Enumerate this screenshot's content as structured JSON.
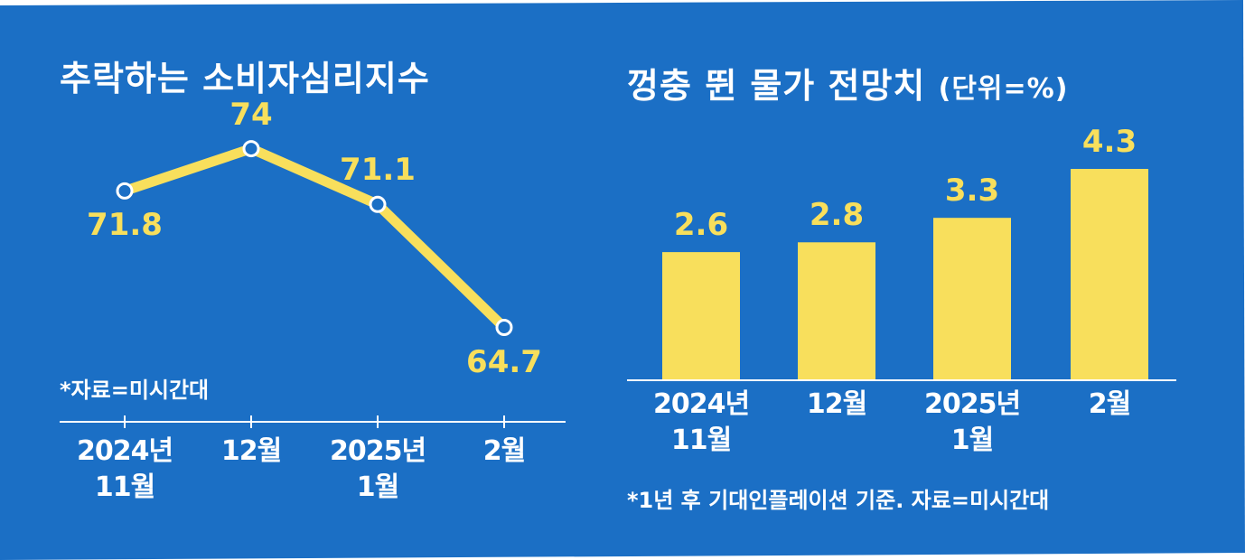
{
  "colors": {
    "background": "#1b6fc5",
    "accent": "#f8df5c",
    "text": "#ffffff"
  },
  "chart_data": [
    {
      "type": "line",
      "title": "추락하는 소비자심리지수",
      "categories": [
        "2024년\n11월",
        "12월",
        "2025년\n1월",
        "2월"
      ],
      "values": [
        71.8,
        74,
        71.1,
        64.7
      ],
      "value_labels": [
        "71.8",
        "74",
        "71.1",
        "64.7"
      ],
      "note": "*자료=미시간대",
      "ylim": [
        62,
        76
      ],
      "grid": false,
      "legend": "none"
    },
    {
      "type": "bar",
      "title": "껑충 뛴 물가 전망치",
      "unit": "(단위=%)",
      "categories": [
        "2024년\n11월",
        "12월",
        "2025년\n1월",
        "2월"
      ],
      "values": [
        2.6,
        2.8,
        3.3,
        4.3
      ],
      "value_labels": [
        "2.6",
        "2.8",
        "3.3",
        "4.3"
      ],
      "note": "*1년 후 기대인플레이션 기준. 자료=미시간대",
      "ylim": [
        0,
        4.3
      ],
      "grid": false,
      "legend": "none"
    }
  ]
}
